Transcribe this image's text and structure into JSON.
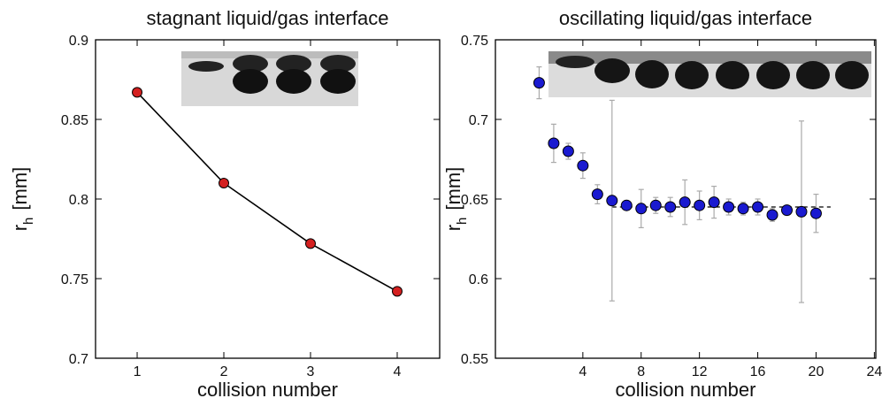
{
  "chart_data": [
    {
      "type": "line",
      "title": "stagnant liquid/gas interface",
      "x_label": "collision number",
      "y_label": {
        "main": "r",
        "sub": "h",
        "unit": "[mm]"
      },
      "x": [
        1,
        2,
        3,
        4
      ],
      "values": [
        0.867,
        0.81,
        0.772,
        0.742
      ],
      "color": "#d42020",
      "line_color": "#000000",
      "xlim": [
        0.52,
        4.49
      ],
      "ylim": [
        0.7,
        0.9
      ],
      "xticks": [
        1,
        2,
        3,
        4
      ],
      "yticks": [
        0.7,
        0.75,
        0.8,
        0.85,
        0.9
      ]
    },
    {
      "type": "scatter",
      "title": "oscillating liquid/gas interface",
      "x_label": "collision number",
      "y_label": {
        "main": "r",
        "sub": "h",
        "unit": "[mm]"
      },
      "x": [
        1,
        2,
        3,
        4,
        5,
        6,
        7,
        8,
        9,
        10,
        11,
        12,
        13,
        14,
        15,
        16,
        17,
        18,
        19,
        20
      ],
      "values": [
        0.723,
        0.685,
        0.68,
        0.671,
        0.653,
        0.649,
        0.646,
        0.644,
        0.646,
        0.645,
        0.648,
        0.646,
        0.648,
        0.645,
        0.644,
        0.645,
        0.64,
        0.643,
        0.642,
        0.641
      ],
      "errors": [
        0.01,
        0.012,
        0.005,
        0.008,
        0.006,
        0.063,
        0.003,
        0.012,
        0.005,
        0.006,
        0.014,
        0.009,
        0.01,
        0.005,
        0.004,
        0.005,
        0.004,
        0.003,
        0.057,
        0.012
      ],
      "color": "#1a1ad0",
      "error_color": "#aaaaaa",
      "reference_line": {
        "value": 0.645,
        "x": [
          6,
          21
        ]
      },
      "xlim": [
        -2,
        24.1
      ],
      "ylim": [
        0.55,
        0.75
      ],
      "xticks": [
        4,
        8,
        12,
        16,
        20,
        24
      ],
      "yticks": [
        0.55,
        0.6,
        0.65,
        0.7,
        0.75
      ]
    }
  ]
}
